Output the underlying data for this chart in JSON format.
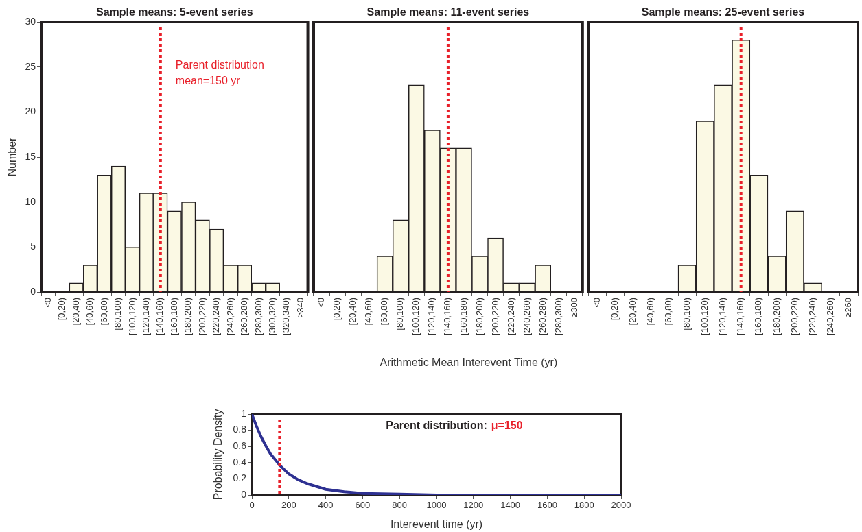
{
  "chart_data": [
    {
      "type": "bar",
      "title": "Sample means: 5-event series",
      "ylabel": "Number",
      "categories": [
        "<0",
        "[0,20)",
        "[20,40)",
        "[40,60)",
        "[60,80)",
        "[80,100)",
        "[100,120)",
        "[120,140)",
        "[140,160)",
        "[160,180)",
        "[180,200)",
        "[200,220)",
        "[220,240)",
        "[240,260)",
        "[260,280)",
        "[280,300)",
        "[300,320)",
        "[320,340)",
        "≥340"
      ],
      "values": [
        0,
        0,
        1,
        3,
        13,
        14,
        5,
        11,
        11,
        9,
        10,
        8,
        7,
        3,
        3,
        1,
        1,
        0,
        0
      ],
      "color": "#fbf9e4",
      "ylim": [
        0,
        30
      ],
      "yticks": [
        0,
        5,
        10,
        15,
        20,
        25,
        30
      ],
      "ref_lines": [
        {
          "axis": "x",
          "value": "[140,160)",
          "label": "Parent distribution mean=150 yr",
          "color": "#e8202a",
          "line_style": "dotted"
        }
      ]
    },
    {
      "type": "bar",
      "title": "Sample means: 11-event series",
      "xlabel": "Arithmetic Mean Interevent Time (yr)",
      "categories": [
        "<0",
        "[0,20)",
        "[20,40)",
        "[40,60)",
        "[60,80)",
        "[80,100)",
        "[100,120)",
        "[120,140)",
        "[140,160)",
        "[160,180)",
        "[180,200)",
        "[200,220)",
        "[220,240)",
        "[240,260)",
        "[260,280)",
        "[280,300)",
        "≥300"
      ],
      "values": [
        0,
        0,
        0,
        0,
        4,
        8,
        23,
        18,
        16,
        16,
        4,
        6,
        1,
        1,
        3,
        0,
        0
      ],
      "color": "#fbf9e4",
      "ylim": [
        0,
        30
      ],
      "yticks": [
        0,
        5,
        10,
        15,
        20,
        25,
        30
      ],
      "tick_labels": "x",
      "ref_lines": [
        {
          "axis": "x",
          "value": "[140,160)",
          "color": "#e8202a",
          "line_style": "dotted"
        }
      ]
    },
    {
      "type": "bar",
      "title": "Sample means: 25-event series",
      "categories": [
        "<0",
        "[0,20)",
        "[20,40)",
        "[40,60)",
        "[60,80)",
        "[80,100)",
        "[100,120)",
        "[120,140)",
        "[140,160)",
        "[160,180)",
        "[180,200)",
        "[200,220)",
        "[220,240)",
        "[240,260)",
        "≥260"
      ],
      "values": [
        0,
        0,
        0,
        0,
        0,
        3,
        19,
        23,
        28,
        13,
        4,
        9,
        1,
        0,
        0
      ],
      "color": "#fbf9e4",
      "ylim": [
        0,
        30
      ],
      "yticks": [
        0,
        5,
        10,
        15,
        20,
        25,
        30
      ],
      "tick_labels": "x",
      "ref_lines": [
        {
          "axis": "x",
          "value": "[140,160)",
          "color": "#e8202a",
          "line_style": "dotted"
        }
      ]
    },
    {
      "type": "line",
      "title": "Parent distribution:",
      "xlabel": "Interevent time (yr)",
      "ylabel": "Probability Density",
      "x": [
        0,
        25,
        50,
        75,
        100,
        150,
        200,
        250,
        300,
        400,
        500,
        600,
        800,
        1000,
        1500,
        2000
      ],
      "series": [
        {
          "color": "#2e3192",
          "values": [
            1,
            0.85,
            0.72,
            0.61,
            0.51,
            0.37,
            0.26,
            0.19,
            0.14,
            0.07,
            0.04,
            0.02,
            0.01,
            0,
            0,
            0
          ]
        }
      ],
      "xlim": [
        0,
        2000
      ],
      "xticks": [
        0,
        200,
        400,
        600,
        800,
        1000,
        1200,
        1400,
        1600,
        1800,
        2000
      ],
      "ylim": [
        0,
        1
      ],
      "yticks": [
        0,
        0.2,
        0.4,
        0.6,
        0.8,
        1
      ],
      "ref_lines": [
        {
          "axis": "x",
          "value": 150,
          "label": "μ=150",
          "color": "#e8202a",
          "line_style": "dotted"
        }
      ]
    }
  ]
}
